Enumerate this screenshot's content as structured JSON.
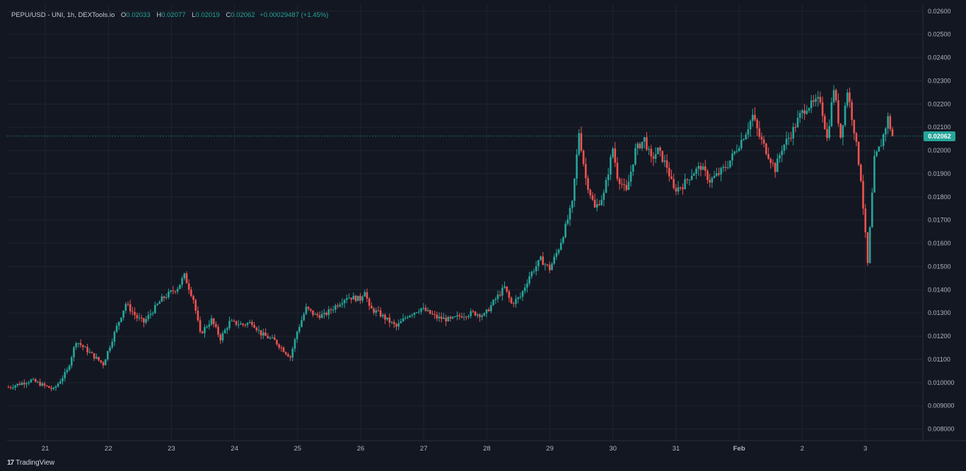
{
  "header": {
    "symbol": "PEPU/USD - UNI, 1h, DEXTools.io",
    "o_label": "O",
    "o_value": "0.02033",
    "h_label": "H",
    "h_value": "0.02077",
    "l_label": "L",
    "l_value": "0.02019",
    "c_label": "C",
    "c_value": "0.02062",
    "change": "+0.00029487 (+1.45%)"
  },
  "last_price_label": "0.02062",
  "footer": {
    "brand": "TradingView"
  },
  "colors": {
    "background": "#131722",
    "up": "#26a69a",
    "down": "#ef5350",
    "grid": "#1f2430",
    "axis_text": "#b2b5be"
  },
  "chart_data": {
    "type": "candlestick",
    "title": "PEPU/USD - UNI, 1h, DEXTools.io",
    "interval": "1h",
    "last_price": 0.02062,
    "ylim": [
      0.0075,
      0.0263
    ],
    "y_ticks": [
      "0.02600",
      "0.02500",
      "0.02400",
      "0.02300",
      "0.02200",
      "0.02100",
      "0.02000",
      "0.01900",
      "0.01800",
      "0.01700",
      "0.01600",
      "0.01500",
      "0.01400",
      "0.01300",
      "0.01200",
      "0.01100",
      "0.010000",
      "0.009000",
      "0.008000"
    ],
    "x_ticks": [
      "21",
      "22",
      "23",
      "24",
      "25",
      "26",
      "27",
      "28",
      "29",
      "30",
      "31",
      "Feb",
      "2",
      "3"
    ],
    "grid": true,
    "trend_keypoints": [
      [
        0,
        0.0098
      ],
      [
        10,
        0.0101
      ],
      [
        20,
        0.0097
      ],
      [
        26,
        0.0105
      ],
      [
        30,
        0.0118
      ],
      [
        37,
        0.0112
      ],
      [
        42,
        0.0108
      ],
      [
        48,
        0.0124
      ],
      [
        52,
        0.0134
      ],
      [
        57,
        0.0128
      ],
      [
        60,
        0.0126
      ],
      [
        68,
        0.0136
      ],
      [
        75,
        0.0141
      ],
      [
        78,
        0.0146
      ],
      [
        82,
        0.0136
      ],
      [
        85,
        0.0121
      ],
      [
        90,
        0.0127
      ],
      [
        94,
        0.0119
      ],
      [
        98,
        0.0126
      ],
      [
        104,
        0.0125
      ],
      [
        108,
        0.0126
      ],
      [
        112,
        0.0121
      ],
      [
        118,
        0.0118
      ],
      [
        125,
        0.0111
      ],
      [
        128,
        0.0122
      ],
      [
        132,
        0.0132
      ],
      [
        136,
        0.0129
      ],
      [
        140,
        0.0129
      ],
      [
        145,
        0.0133
      ],
      [
        150,
        0.0137
      ],
      [
        156,
        0.0136
      ],
      [
        158,
        0.014
      ],
      [
        160,
        0.0132
      ],
      [
        164,
        0.013
      ],
      [
        168,
        0.0127
      ],
      [
        172,
        0.0124
      ],
      [
        177,
        0.0129
      ],
      [
        183,
        0.0132
      ],
      [
        190,
        0.0128
      ],
      [
        196,
        0.0127
      ],
      [
        201,
        0.0129
      ],
      [
        206,
        0.013
      ],
      [
        211,
        0.0129
      ],
      [
        216,
        0.0136
      ],
      [
        220,
        0.0141
      ],
      [
        223,
        0.0134
      ],
      [
        227,
        0.0137
      ],
      [
        231,
        0.0146
      ],
      [
        236,
        0.0153
      ],
      [
        240,
        0.0149
      ],
      [
        244,
        0.0158
      ],
      [
        247,
        0.0167
      ],
      [
        250,
        0.0177
      ],
      [
        253,
        0.0208
      ],
      [
        256,
        0.0188
      ],
      [
        260,
        0.0175
      ],
      [
        264,
        0.0181
      ],
      [
        268,
        0.0201
      ],
      [
        270,
        0.0189
      ],
      [
        274,
        0.0182
      ],
      [
        278,
        0.02
      ],
      [
        282,
        0.0205
      ],
      [
        285,
        0.0196
      ],
      [
        288,
        0.02
      ],
      [
        292,
        0.0193
      ],
      [
        295,
        0.0183
      ],
      [
        299,
        0.0185
      ],
      [
        303,
        0.019
      ],
      [
        307,
        0.0193
      ],
      [
        311,
        0.0187
      ],
      [
        315,
        0.019
      ],
      [
        319,
        0.0194
      ],
      [
        323,
        0.0201
      ],
      [
        327,
        0.0208
      ],
      [
        330,
        0.0215
      ],
      [
        333,
        0.0206
      ],
      [
        337,
        0.0198
      ],
      [
        340,
        0.0192
      ],
      [
        343,
        0.0201
      ],
      [
        347,
        0.0207
      ],
      [
        351,
        0.0215
      ],
      [
        354,
        0.0219
      ],
      [
        357,
        0.022
      ],
      [
        360,
        0.0222
      ],
      [
        363,
        0.0205
      ],
      [
        366,
        0.0227
      ],
      [
        369,
        0.0206
      ],
      [
        372,
        0.0226
      ],
      [
        375,
        0.0209
      ],
      [
        378,
        0.0188
      ],
      [
        381,
        0.0151
      ],
      [
        384,
        0.0196
      ],
      [
        387,
        0.0203
      ],
      [
        390,
        0.0214
      ],
      [
        392,
        0.0206
      ]
    ]
  }
}
